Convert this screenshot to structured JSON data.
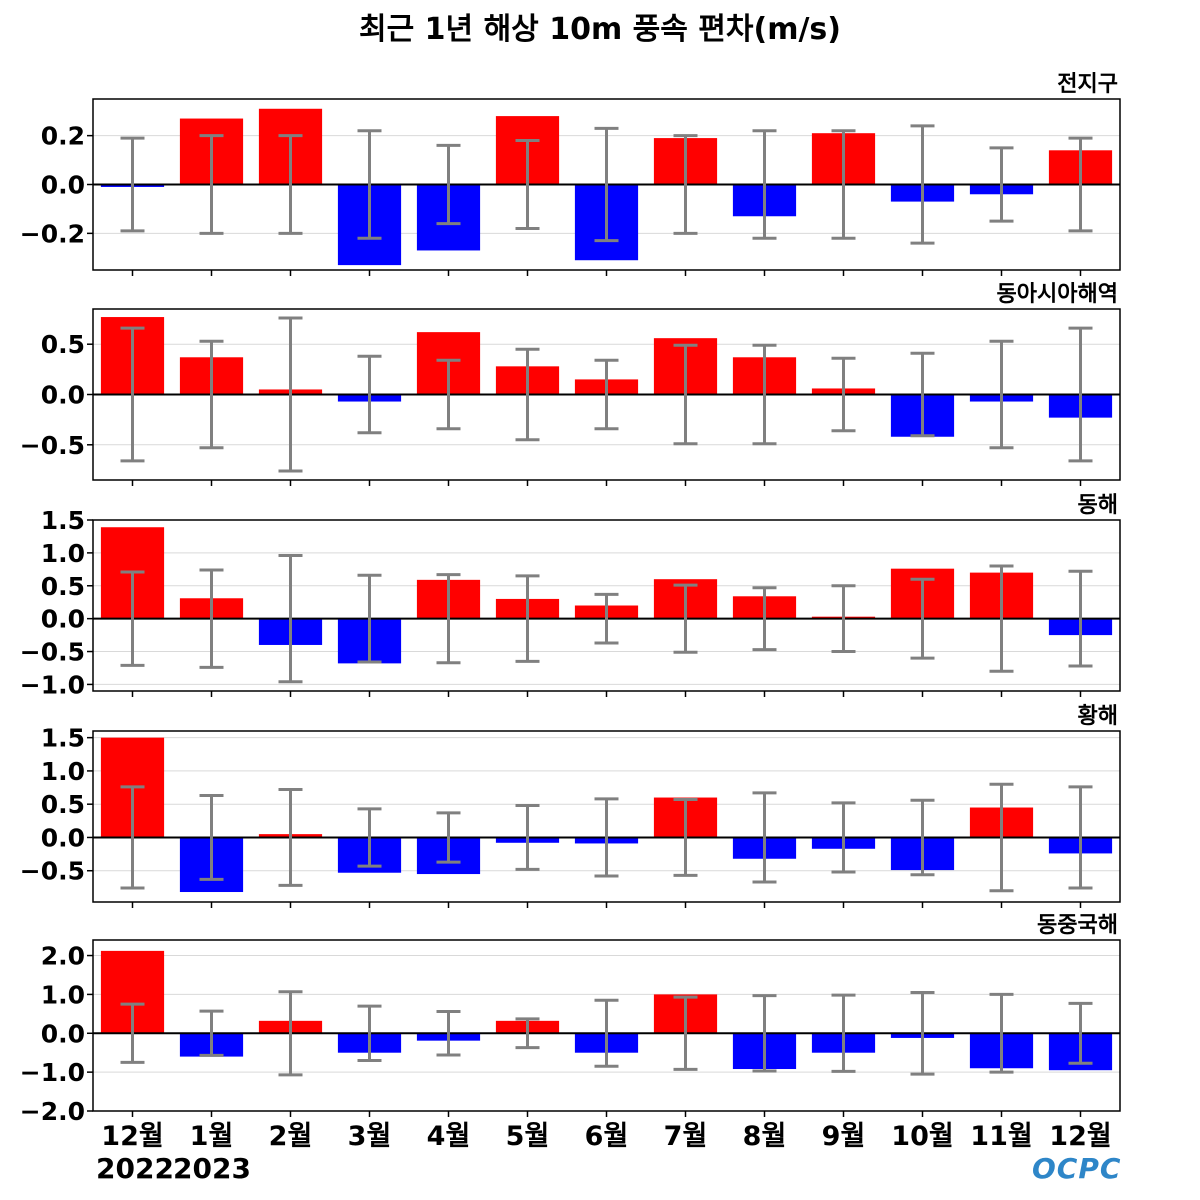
{
  "title": "최근 1년 해상 10m 풍속 편차(m/s)",
  "year_labels": [
    "2022",
    "2023"
  ],
  "logo_text": "OCPC",
  "chart_data": {
    "type": "bar",
    "categories": [
      "12월",
      "1월",
      "2월",
      "3월",
      "4월",
      "5월",
      "6월",
      "7월",
      "8월",
      "9월",
      "10월",
      "11월",
      "12월"
    ],
    "colors": {
      "positive": "#ff0000",
      "negative": "#0000ff",
      "errorbar": "#808080"
    },
    "panels": [
      {
        "title": "전지구",
        "ylim": [
          -0.35,
          0.35
        ],
        "yticks": [
          0.2,
          0.0,
          -0.2
        ],
        "ytick_labels": [
          "0.2",
          "0.0",
          "−0.2"
        ],
        "values": [
          -0.01,
          0.27,
          0.31,
          -0.33,
          -0.27,
          0.28,
          -0.31,
          0.19,
          -0.13,
          0.21,
          -0.07,
          -0.04,
          0.14
        ],
        "error": [
          0.19,
          0.2,
          0.2,
          0.22,
          0.16,
          0.18,
          0.23,
          0.2,
          0.22,
          0.22,
          0.24,
          0.15,
          0.19
        ]
      },
      {
        "title": "동아시아해역",
        "ylim": [
          -0.85,
          0.85
        ],
        "yticks": [
          0.5,
          0.0,
          -0.5
        ],
        "ytick_labels": [
          "0.5",
          "0.0",
          "−0.5"
        ],
        "values": [
          0.77,
          0.37,
          0.05,
          -0.07,
          0.62,
          0.28,
          0.15,
          0.56,
          0.37,
          0.06,
          -0.42,
          -0.07,
          -0.23
        ],
        "error": [
          0.66,
          0.53,
          0.76,
          0.38,
          0.34,
          0.45,
          0.34,
          0.49,
          0.49,
          0.36,
          0.41,
          0.53,
          0.66
        ]
      },
      {
        "title": "동해",
        "ylim": [
          -1.1,
          1.5
        ],
        "yticks": [
          1.5,
          1.0,
          0.5,
          0.0,
          -0.5,
          -1.0
        ],
        "ytick_labels": [
          "1.5",
          "1.0",
          "0.5",
          "0.0",
          "−0.5",
          "−1.0"
        ],
        "values": [
          1.39,
          0.31,
          -0.4,
          -0.68,
          0.59,
          0.3,
          0.2,
          0.6,
          0.34,
          0.03,
          0.76,
          0.7,
          -0.25
        ],
        "error": [
          0.71,
          0.74,
          0.96,
          0.66,
          0.67,
          0.65,
          0.37,
          0.51,
          0.47,
          0.5,
          0.6,
          0.8,
          0.72
        ]
      },
      {
        "title": "황해",
        "ylim": [
          -0.97,
          1.6
        ],
        "yticks": [
          1.5,
          1.0,
          0.5,
          0.0,
          -0.5
        ],
        "ytick_labels": [
          "1.5",
          "1.0",
          "0.5",
          "0.0",
          "−0.5"
        ],
        "values": [
          1.5,
          -0.82,
          0.05,
          -0.53,
          -0.55,
          -0.08,
          -0.09,
          0.6,
          -0.32,
          -0.17,
          -0.49,
          0.45,
          -0.24
        ],
        "error": [
          0.76,
          0.63,
          0.72,
          0.43,
          0.37,
          0.48,
          0.58,
          0.57,
          0.67,
          0.52,
          0.56,
          0.8,
          0.76
        ]
      },
      {
        "title": "동중국해",
        "ylim": [
          -2.0,
          2.4
        ],
        "yticks": [
          2.0,
          1.0,
          0.0,
          -1.0,
          -2.0
        ],
        "ytick_labels": [
          "2.0",
          "1.0",
          "0.0",
          "−1.0",
          "−2.0"
        ],
        "values": [
          2.12,
          -0.6,
          0.32,
          -0.5,
          -0.19,
          0.32,
          -0.5,
          1.0,
          -0.92,
          -0.5,
          -0.12,
          -0.9,
          -0.95
        ],
        "error": [
          0.75,
          0.57,
          1.07,
          0.7,
          0.56,
          0.37,
          0.85,
          0.93,
          0.97,
          0.98,
          1.05,
          1.0,
          0.77
        ]
      }
    ]
  }
}
